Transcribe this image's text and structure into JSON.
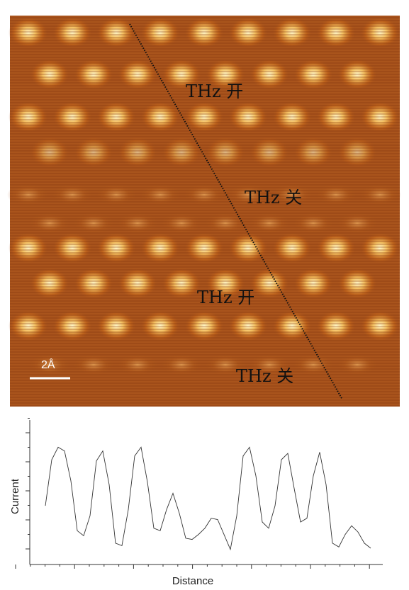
{
  "image": {
    "annotations": [
      {
        "id": "label-thz-on-1",
        "text": "THz 开"
      },
      {
        "id": "label-thz-off-1",
        "text": "THz 关"
      },
      {
        "id": "label-thz-on-2",
        "text": "THz 开"
      },
      {
        "id": "label-thz-off-2",
        "text": "THz 关"
      }
    ],
    "scale_bar_label": "2Å",
    "colors": {
      "bright": "#fff2c0",
      "mid": "#c4681c",
      "dark": "#5a1e06",
      "background": "#a9541c"
    }
  },
  "profile": {
    "xlabel": "Distance",
    "ylabel": "Current",
    "ylim": [
      0,
      1
    ],
    "series": [
      {
        "values": [
          0.38,
          0.75,
          0.85,
          0.82,
          0.58,
          0.18,
          0.14,
          0.3,
          0.74,
          0.82,
          0.55,
          0.08,
          0.06,
          0.35,
          0.78,
          0.85,
          0.57,
          0.2,
          0.18,
          0.35,
          0.48,
          0.32,
          0.12,
          0.11,
          0.15,
          0.2,
          0.28,
          0.27,
          0.15,
          0.03,
          0.3,
          0.78,
          0.85,
          0.62,
          0.25,
          0.2,
          0.38,
          0.75,
          0.8,
          0.52,
          0.25,
          0.28,
          0.62,
          0.81,
          0.55,
          0.08,
          0.05,
          0.15,
          0.22,
          0.17,
          0.08,
          0.04
        ]
      }
    ]
  }
}
